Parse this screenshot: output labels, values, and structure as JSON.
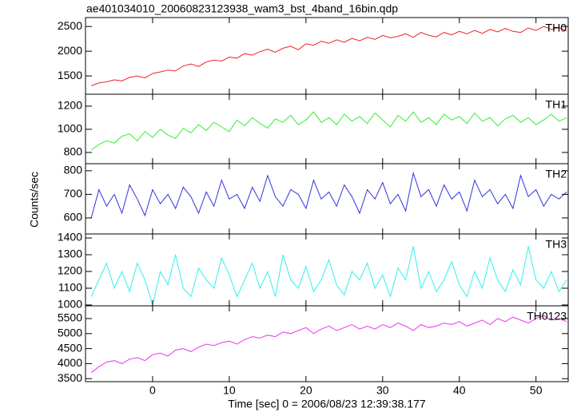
{
  "page": {
    "title": "ae401034010_20060823123938_wam3_bst_4band_16bin.qdp",
    "y_label": "Counts/sec",
    "x_label": "Time [sec] 0 = 2006/08/23 12:39:38.177"
  },
  "chart_data": [
    {
      "type": "line",
      "label": "TH0",
      "color": "#ee2222",
      "x": [
        -8,
        -7,
        -6,
        -5,
        -4,
        -3,
        -2,
        -1,
        0,
        1,
        2,
        3,
        4,
        5,
        6,
        7,
        8,
        9,
        10,
        11,
        12,
        13,
        14,
        15,
        16,
        17,
        18,
        19,
        20,
        21,
        22,
        23,
        24,
        25,
        26,
        27,
        28,
        29,
        30,
        31,
        32,
        33,
        34,
        35,
        36,
        37,
        38,
        39,
        40,
        41,
        42,
        43,
        44,
        45,
        46,
        47,
        48,
        49,
        50,
        51,
        52,
        53,
        54
      ],
      "values": [
        1300,
        1360,
        1380,
        1420,
        1400,
        1470,
        1500,
        1460,
        1550,
        1580,
        1620,
        1600,
        1700,
        1740,
        1690,
        1780,
        1820,
        1800,
        1880,
        1860,
        1950,
        1920,
        1990,
        2040,
        1980,
        2060,
        2100,
        2030,
        2150,
        2120,
        2200,
        2160,
        2230,
        2180,
        2260,
        2210,
        2280,
        2240,
        2320,
        2270,
        2300,
        2350,
        2280,
        2380,
        2320,
        2290,
        2380,
        2330,
        2400,
        2350,
        2420,
        2360,
        2440,
        2390,
        2460,
        2400,
        2380,
        2470,
        2420,
        2500,
        2440,
        2480,
        2410
      ],
      "xlim": [
        -8.75,
        54.2
      ],
      "xticks": [
        0,
        10,
        20,
        30,
        40,
        50
      ],
      "ylim": [
        1130,
        2680
      ],
      "yticks": [
        1500,
        2000,
        2500
      ]
    },
    {
      "type": "line",
      "label": "TH1",
      "color": "#33ee33",
      "x": [
        -8,
        -7,
        -6,
        -5,
        -4,
        -3,
        -2,
        -1,
        0,
        1,
        2,
        3,
        4,
        5,
        6,
        7,
        8,
        9,
        10,
        11,
        12,
        13,
        14,
        15,
        16,
        17,
        18,
        19,
        20,
        21,
        22,
        23,
        24,
        25,
        26,
        27,
        28,
        29,
        30,
        31,
        32,
        33,
        34,
        35,
        36,
        37,
        38,
        39,
        40,
        41,
        42,
        43,
        44,
        45,
        46,
        47,
        48,
        49,
        50,
        51,
        52,
        53,
        54
      ],
      "values": [
        820,
        870,
        900,
        880,
        940,
        960,
        900,
        980,
        930,
        1000,
        950,
        920,
        1010,
        970,
        1040,
        990,
        1060,
        1020,
        980,
        1080,
        1030,
        1100,
        1050,
        1010,
        1090,
        1060,
        1120,
        1040,
        1080,
        1150,
        1060,
        1100,
        1040,
        1130,
        1070,
        1110,
        1050,
        1140,
        1080,
        1020,
        1120,
        1070,
        1150,
        1060,
        1100,
        1040,
        1130,
        1080,
        1110,
        1050,
        1140,
        1070,
        1100,
        1030,
        1090,
        1120,
        1060,
        1100,
        1040,
        1080,
        1130,
        1070,
        1100
      ],
      "xlim": [
        -8.75,
        54.2
      ],
      "xticks": [
        0,
        10,
        20,
        30,
        40,
        50
      ],
      "ylim": [
        703,
        1303
      ],
      "yticks": [
        800,
        1000,
        1200
      ]
    },
    {
      "type": "line",
      "label": "TH2",
      "color": "#3333dd",
      "x": [
        -8,
        -7,
        -6,
        -5,
        -4,
        -3,
        -2,
        -1,
        0,
        1,
        2,
        3,
        4,
        5,
        6,
        7,
        8,
        9,
        10,
        11,
        12,
        13,
        14,
        15,
        16,
        17,
        18,
        19,
        20,
        21,
        22,
        23,
        24,
        25,
        26,
        27,
        28,
        29,
        30,
        31,
        32,
        33,
        34,
        35,
        36,
        37,
        38,
        39,
        40,
        41,
        42,
        43,
        44,
        45,
        46,
        47,
        48,
        49,
        50,
        51,
        52,
        53,
        54
      ],
      "values": [
        600,
        720,
        650,
        700,
        620,
        740,
        680,
        610,
        720,
        660,
        700,
        640,
        730,
        690,
        620,
        710,
        650,
        760,
        680,
        700,
        640,
        730,
        670,
        780,
        690,
        650,
        720,
        700,
        640,
        760,
        680,
        710,
        650,
        740,
        690,
        620,
        720,
        680,
        750,
        660,
        700,
        630,
        790,
        690,
        720,
        650,
        740,
        680,
        710,
        630,
        760,
        690,
        720,
        660,
        700,
        640,
        780,
        690,
        720,
        650,
        700,
        680,
        710
      ],
      "xlim": [
        -8.75,
        54.2
      ],
      "xticks": [
        0,
        10,
        20,
        30,
        40,
        50
      ],
      "ylim": [
        532,
        830
      ],
      "yticks": [
        600,
        700,
        800
      ]
    },
    {
      "type": "line",
      "label": "TH3",
      "color": "#33eeee",
      "x": [
        -8,
        -7,
        -6,
        -5,
        -4,
        -3,
        -2,
        -1,
        0,
        1,
        2,
        3,
        4,
        5,
        6,
        7,
        8,
        9,
        10,
        11,
        12,
        13,
        14,
        15,
        16,
        17,
        18,
        19,
        20,
        21,
        22,
        23,
        24,
        25,
        26,
        27,
        28,
        29,
        30,
        31,
        32,
        33,
        34,
        35,
        36,
        37,
        38,
        39,
        40,
        41,
        42,
        43,
        44,
        45,
        46,
        47,
        48,
        49,
        50,
        51,
        52,
        53,
        54
      ],
      "values": [
        1050,
        1150,
        1250,
        1100,
        1200,
        1080,
        1250,
        1150,
        1000,
        1200,
        1120,
        1300,
        1100,
        1050,
        1220,
        1150,
        1100,
        1280,
        1180,
        1050,
        1150,
        1250,
        1100,
        1200,
        1050,
        1300,
        1150,
        1100,
        1230,
        1080,
        1150,
        1270,
        1120,
        1060,
        1200,
        1150,
        1250,
        1100,
        1180,
        1050,
        1220,
        1150,
        1350,
        1100,
        1200,
        1080,
        1150,
        1260,
        1120,
        1050,
        1200,
        1100,
        1280,
        1150,
        1080,
        1210,
        1120,
        1350,
        1150,
        1100,
        1200,
        1080,
        1150
      ],
      "xlim": [
        -8.75,
        54.2
      ],
      "xticks": [
        0,
        10,
        20,
        30,
        40,
        50
      ],
      "ylim": [
        995,
        1424
      ],
      "yticks": [
        1000,
        1100,
        1200,
        1300,
        1400
      ]
    },
    {
      "type": "line",
      "label": "TH0123",
      "color": "#ee33ee",
      "x": [
        -8,
        -7,
        -6,
        -5,
        -4,
        -3,
        -2,
        -1,
        0,
        1,
        2,
        3,
        4,
        5,
        6,
        7,
        8,
        9,
        10,
        11,
        12,
        13,
        14,
        15,
        16,
        17,
        18,
        19,
        20,
        21,
        22,
        23,
        24,
        25,
        26,
        27,
        28,
        29,
        30,
        31,
        32,
        33,
        34,
        35,
        36,
        37,
        38,
        39,
        40,
        41,
        42,
        43,
        44,
        45,
        46,
        47,
        48,
        49,
        50,
        51,
        52,
        53,
        54
      ],
      "values": [
        3700,
        3900,
        4050,
        4100,
        4000,
        4150,
        4200,
        4100,
        4300,
        4350,
        4250,
        4450,
        4500,
        4400,
        4550,
        4650,
        4600,
        4700,
        4750,
        4650,
        4800,
        4900,
        4850,
        4950,
        4900,
        5050,
        5000,
        5100,
        5200,
        5000,
        5150,
        5250,
        5100,
        5200,
        5300,
        5150,
        5250,
        5150,
        5300,
        5200,
        5350,
        5250,
        5100,
        5300,
        5200,
        5250,
        5350,
        5300,
        5400,
        5250,
        5350,
        5450,
        5300,
        5500,
        5400,
        5550,
        5450,
        5350,
        5500,
        5600,
        5450,
        5500,
        5400
      ],
      "xlim": [
        -8.75,
        54.2
      ],
      "xticks": [
        0,
        10,
        20,
        30,
        40,
        50
      ],
      "ylim": [
        3400,
        5925
      ],
      "yticks": [
        3500,
        4000,
        4500,
        5000,
        5500
      ]
    }
  ]
}
